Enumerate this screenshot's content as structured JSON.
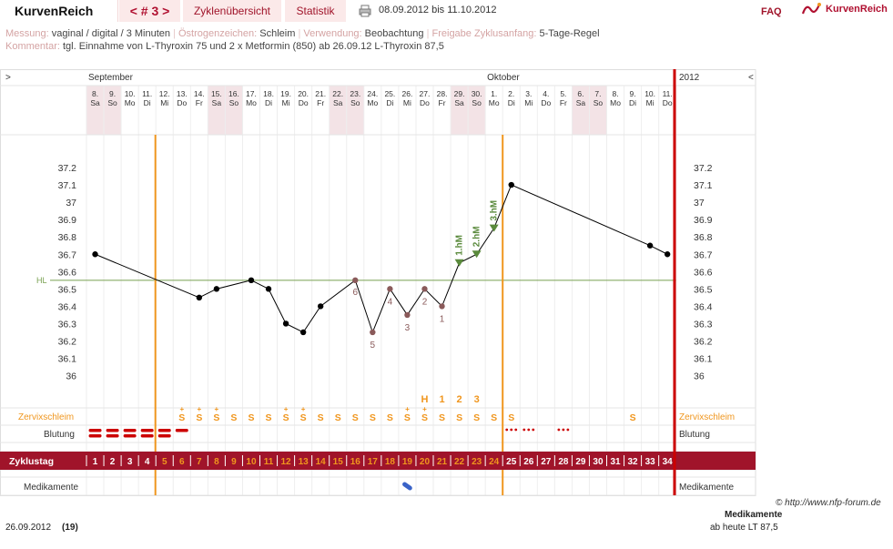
{
  "app": {
    "title": "KurvenReich",
    "nav_label": "< # 3 >",
    "tab_overview": "Zyklenübersicht",
    "tab_stats": "Statistik",
    "date_range": "08.09.2012 bis 11.10.2012",
    "faq": "FAQ",
    "logo_text": "KurvenReich"
  },
  "meta": {
    "measure_label": "Messung:",
    "measure_value": "vaginal / digital / 3 Minuten",
    "estrogen_label": "Östrogenzeichen:",
    "estrogen_value": "Schleim",
    "usage_label": "Verwendung:",
    "usage_value": "Beobachtung",
    "release_label": "Freigabe Zyklusanfang:",
    "release_value": "5-Tage-Regel",
    "comment_label": "Kommentar:",
    "comment_value": "tgl. Einnahme von L-Thyroxin 75 und 2 x Metformin (850) ab 26.09.12 L-Thyroxin 87,5"
  },
  "chart_data": {
    "type": "line",
    "months": [
      {
        "label": "September",
        "day_index": 0
      },
      {
        "label": "Oktober",
        "day_index": 23
      }
    ],
    "year_label": "2012",
    "nav_left": ">",
    "nav_right": "<",
    "days": [
      {
        "date": "8.",
        "weekday": "Sa",
        "weekend": true
      },
      {
        "date": "9.",
        "weekday": "So",
        "weekend": true
      },
      {
        "date": "10.",
        "weekday": "Mo",
        "weekend": false
      },
      {
        "date": "11.",
        "weekday": "Di",
        "weekend": false
      },
      {
        "date": "12.",
        "weekday": "Mi",
        "weekend": false
      },
      {
        "date": "13.",
        "weekday": "Do",
        "weekend": false
      },
      {
        "date": "14.",
        "weekday": "Fr",
        "weekend": false
      },
      {
        "date": "15.",
        "weekday": "Sa",
        "weekend": true
      },
      {
        "date": "16.",
        "weekday": "So",
        "weekend": true
      },
      {
        "date": "17.",
        "weekday": "Mo",
        "weekend": false
      },
      {
        "date": "18.",
        "weekday": "Di",
        "weekend": false
      },
      {
        "date": "19.",
        "weekday": "Mi",
        "weekend": false
      },
      {
        "date": "20.",
        "weekday": "Do",
        "weekend": false
      },
      {
        "date": "21.",
        "weekday": "Fr",
        "weekend": false
      },
      {
        "date": "22.",
        "weekday": "Sa",
        "weekend": true
      },
      {
        "date": "23.",
        "weekday": "So",
        "weekend": true
      },
      {
        "date": "24.",
        "weekday": "Mo",
        "weekend": false
      },
      {
        "date": "25.",
        "weekday": "Di",
        "weekend": false
      },
      {
        "date": "26.",
        "weekday": "Mi",
        "weekend": false
      },
      {
        "date": "27.",
        "weekday": "Do",
        "weekend": false
      },
      {
        "date": "28.",
        "weekday": "Fr",
        "weekend": false
      },
      {
        "date": "29.",
        "weekday": "Sa",
        "weekend": true
      },
      {
        "date": "30.",
        "weekday": "So",
        "weekend": true
      },
      {
        "date": "1.",
        "weekday": "Mo",
        "weekend": false
      },
      {
        "date": "2.",
        "weekday": "Di",
        "weekend": false
      },
      {
        "date": "3.",
        "weekday": "Mi",
        "weekend": false
      },
      {
        "date": "4.",
        "weekday": "Do",
        "weekend": false
      },
      {
        "date": "5.",
        "weekday": "Fr",
        "weekend": false
      },
      {
        "date": "6.",
        "weekday": "Sa",
        "weekend": true
      },
      {
        "date": "7.",
        "weekday": "So",
        "weekend": true
      },
      {
        "date": "8.",
        "weekday": "Mo",
        "weekend": false
      },
      {
        "date": "9.",
        "weekday": "Di",
        "weekend": false
      },
      {
        "date": "10.",
        "weekday": "Mi",
        "weekend": false
      },
      {
        "date": "11.",
        "weekday": "Do",
        "weekend": false
      }
    ],
    "y_ticks": [
      37.2,
      37.1,
      37,
      36.9,
      36.8,
      36.7,
      36.6,
      36.5,
      36.4,
      36.3,
      36.2,
      36.1,
      36
    ],
    "ylim": [
      36,
      37.2
    ],
    "hl_label": "HL",
    "hl_value": 36.55,
    "temperature": [
      {
        "day": 1,
        "value": 36.7
      },
      {
        "day": 7,
        "value": 36.45
      },
      {
        "day": 8,
        "value": 36.5
      },
      {
        "day": 10,
        "value": 36.55
      },
      {
        "day": 11,
        "value": 36.5
      },
      {
        "day": 12,
        "value": 36.3
      },
      {
        "day": 13,
        "value": 36.25
      },
      {
        "day": 14,
        "value": 36.4
      },
      {
        "day": 16,
        "value": 36.55,
        "marker": "6",
        "excluded": true
      },
      {
        "day": 17,
        "value": 36.25,
        "marker": "5",
        "excluded": true
      },
      {
        "day": 18,
        "value": 36.5,
        "marker": "4",
        "excluded": true
      },
      {
        "day": 19,
        "value": 36.35,
        "marker": "3",
        "excluded": true
      },
      {
        "day": 20,
        "value": 36.5,
        "marker": "2",
        "excluded": true
      },
      {
        "day": 21,
        "value": 36.4,
        "marker": "1",
        "excluded": true
      },
      {
        "day": 22,
        "value": 36.65,
        "hm": "1.hM"
      },
      {
        "day": 23,
        "value": 36.7,
        "hm": "2.hM"
      },
      {
        "day": 24,
        "value": 36.85,
        "hm": "3.hM"
      },
      {
        "day": 25,
        "value": 37.1
      },
      {
        "day": 33,
        "value": 36.75
      },
      {
        "day": 34,
        "value": 36.7
      }
    ],
    "peak_markers": [
      {
        "day": 20,
        "label": "H"
      },
      {
        "day": 21,
        "label": "1"
      },
      {
        "day": 22,
        "label": "2"
      },
      {
        "day": 23,
        "label": "3"
      }
    ],
    "cycle_day_label": "Zyklustag",
    "cycle_days": [
      "1",
      "2",
      "3",
      "4",
      "5",
      "6",
      "7",
      "8",
      "9",
      "10",
      "11",
      "12",
      "13",
      "14",
      "15",
      "16",
      "17",
      "18",
      "19",
      "20",
      "21",
      "22",
      "23",
      "24",
      "25",
      "26",
      "27",
      "28",
      "29",
      "30",
      "31",
      "32",
      "33",
      "34"
    ],
    "mucus_label": "Zervixschleim",
    "mucus": [
      {
        "day": 6,
        "label": "S",
        "plus": true
      },
      {
        "day": 7,
        "label": "S",
        "plus": true
      },
      {
        "day": 8,
        "label": "S",
        "plus": true
      },
      {
        "day": 9,
        "label": "S",
        "plus": false
      },
      {
        "day": 10,
        "label": "S",
        "plus": false
      },
      {
        "day": 11,
        "label": "S",
        "plus": false
      },
      {
        "day": 12,
        "label": "S",
        "plus": true
      },
      {
        "day": 13,
        "label": "S",
        "plus": true
      },
      {
        "day": 14,
        "label": "S",
        "plus": false
      },
      {
        "day": 15,
        "label": "S",
        "plus": false
      },
      {
        "day": 16,
        "label": "S",
        "plus": false
      },
      {
        "day": 17,
        "label": "S",
        "plus": false
      },
      {
        "day": 18,
        "label": "S",
        "plus": false
      },
      {
        "day": 19,
        "label": "S",
        "plus": true
      },
      {
        "day": 20,
        "label": "S",
        "plus": true
      },
      {
        "day": 21,
        "label": "S",
        "plus": false
      },
      {
        "day": 22,
        "label": "S",
        "plus": false
      },
      {
        "day": 23,
        "label": "S",
        "plus": false
      },
      {
        "day": 24,
        "label": "S",
        "plus": false
      },
      {
        "day": 25,
        "label": "S",
        "plus": false
      },
      {
        "day": 32,
        "label": "S",
        "plus": false
      }
    ],
    "bleeding_label": "Blutung",
    "bleeding": [
      {
        "day": 1,
        "level": "heavy"
      },
      {
        "day": 2,
        "level": "heavy"
      },
      {
        "day": 3,
        "level": "heavy"
      },
      {
        "day": 4,
        "level": "heavy"
      },
      {
        "day": 5,
        "level": "heavy"
      },
      {
        "day": 6,
        "level": "light"
      },
      {
        "day": 25,
        "level": "spotting"
      },
      {
        "day": 26,
        "level": "spotting"
      },
      {
        "day": 28,
        "level": "spotting"
      }
    ],
    "medication_label": "Medikamente",
    "medication_days": [
      19
    ],
    "cycle_start_line_day": 5,
    "temp_shift_line_day": 25,
    "colors": {
      "accent": "#a0142a",
      "orange": "#f0961e",
      "hl_line": "#78a050",
      "hm_marker": "#5a8a3c",
      "weekend": "#f3e3e6",
      "red_line": "#cc0000",
      "excluded": "#8a5a5a"
    }
  },
  "footer": {
    "date": "26.09.2012",
    "count": "(19)",
    "copyright": "© http://www.nfp-forum.de",
    "med_title": "Medikamente",
    "med_note": "ab heute LT 87,5"
  }
}
